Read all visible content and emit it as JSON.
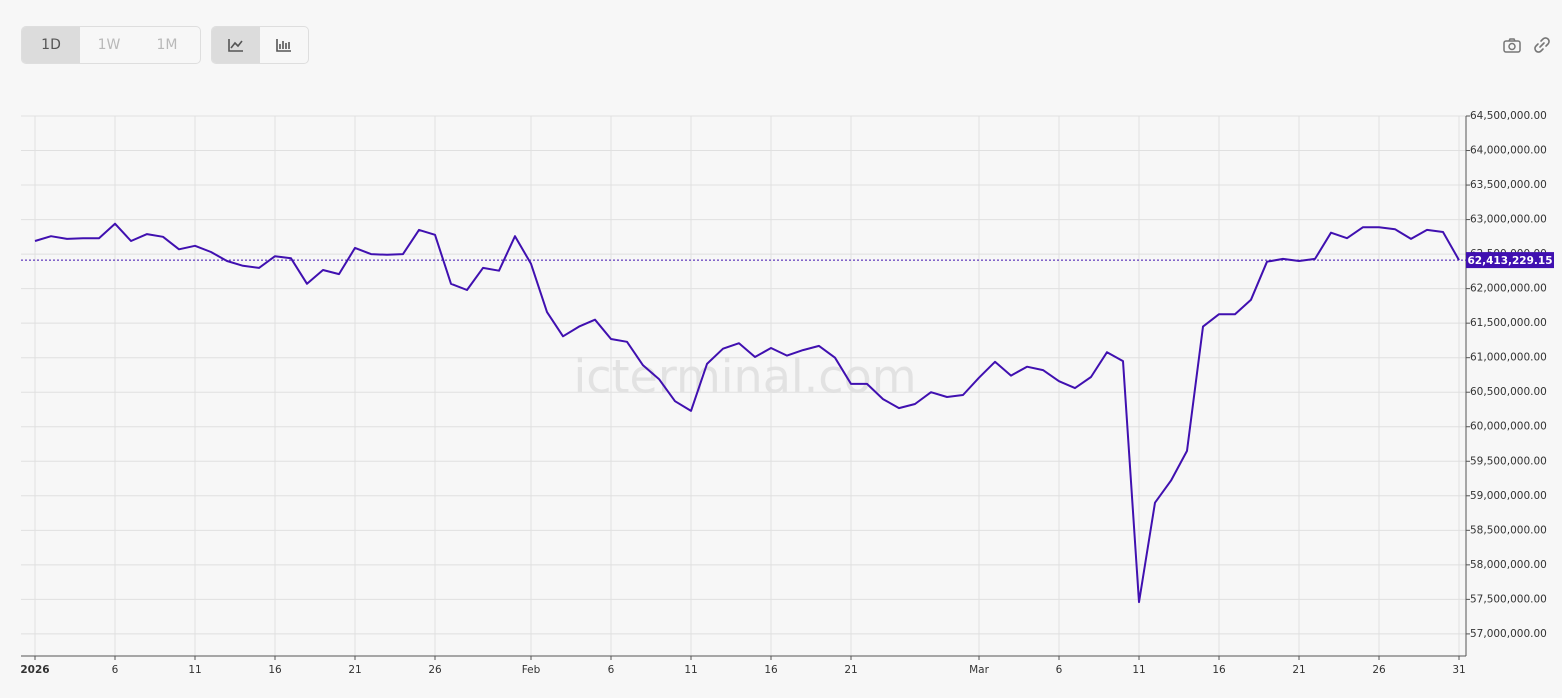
{
  "toolbar": {
    "ranges": [
      "1D",
      "1W",
      "1M"
    ],
    "active_range": "1D"
  },
  "chart_data": {
    "type": "line",
    "watermark": "icterminal.com",
    "x": [
      "2026-01-01",
      "2026-01-02",
      "2026-01-03",
      "2026-01-04",
      "2026-01-05",
      "2026-01-06",
      "2026-01-07",
      "2026-01-08",
      "2026-01-09",
      "2026-01-10",
      "2026-01-11",
      "2026-01-12",
      "2026-01-13",
      "2026-01-14",
      "2026-01-15",
      "2026-01-16",
      "2026-01-17",
      "2026-01-18",
      "2026-01-19",
      "2026-01-20",
      "2026-01-21",
      "2026-01-22",
      "2026-01-23",
      "2026-01-24",
      "2026-01-25",
      "2026-01-26",
      "2026-01-27",
      "2026-01-28",
      "2026-01-29",
      "2026-01-30",
      "2026-01-31",
      "2026-02-01",
      "2026-02-02",
      "2026-02-03",
      "2026-02-04",
      "2026-02-05",
      "2026-02-06",
      "2026-02-07",
      "2026-02-08",
      "2026-02-09",
      "2026-02-10",
      "2026-02-11",
      "2026-02-12",
      "2026-02-13",
      "2026-02-14",
      "2026-02-15",
      "2026-02-16",
      "2026-02-17",
      "2026-02-18",
      "2026-02-19",
      "2026-02-20",
      "2026-02-21",
      "2026-02-22",
      "2026-02-23",
      "2026-02-24",
      "2026-02-25",
      "2026-02-26",
      "2026-02-27",
      "2026-02-28",
      "2026-03-01",
      "2026-03-02",
      "2026-03-03",
      "2026-03-04",
      "2026-03-05",
      "2026-03-06",
      "2026-03-07",
      "2026-03-08",
      "2026-03-09",
      "2026-03-10",
      "2026-03-11",
      "2026-03-12",
      "2026-03-13",
      "2026-03-14",
      "2026-03-15",
      "2026-03-16",
      "2026-03-17",
      "2026-03-18",
      "2026-03-19",
      "2026-03-20",
      "2026-03-21",
      "2026-03-22",
      "2026-03-23",
      "2026-03-24",
      "2026-03-25",
      "2026-03-26",
      "2026-03-27",
      "2026-03-28",
      "2026-03-29",
      "2026-03-30",
      "2026-03-31"
    ],
    "series": [
      {
        "name": "value",
        "color": "#4010b0",
        "values": [
          62690000,
          62760000,
          62720000,
          62730000,
          62730000,
          62940000,
          62690000,
          62790000,
          62750000,
          62570000,
          62620000,
          62530000,
          62400000,
          62330000,
          62300000,
          62470000,
          62440000,
          62070000,
          62270000,
          62210000,
          62590000,
          62500000,
          62490000,
          62500000,
          62850000,
          62780000,
          62070000,
          61980000,
          62300000,
          62260000,
          62760000,
          62360000,
          61660000,
          61310000,
          61450000,
          61550000,
          61270000,
          61230000,
          60890000,
          60690000,
          60370000,
          60230000,
          60910000,
          61130000,
          61210000,
          61010000,
          61140000,
          61030000,
          61110000,
          61170000,
          61000000,
          60620000,
          60620000,
          60400000,
          60270000,
          60330000,
          60500000,
          60430000,
          60460000,
          60710000,
          60940000,
          60740000,
          60870000,
          60820000,
          60660000,
          60560000,
          60720000,
          61080000,
          60950000,
          57460000,
          58900000,
          59220000,
          59650000,
          61450000,
          61630000,
          61630000,
          61840000,
          62390000,
          62430000,
          62400000,
          62430000,
          62810000,
          62730000,
          62890000,
          62890000,
          62860000,
          62720000,
          62850000,
          62820000,
          62413229.15
        ]
      }
    ],
    "current_value": 62413229.15,
    "current_value_label": "62,413,229.15",
    "xlim": [
      "2026-01-01",
      "2026-03-31"
    ],
    "xticks": [
      {
        "value": "2026-01-01",
        "label": "2026"
      },
      {
        "value": "2026-01-06",
        "label": "6"
      },
      {
        "value": "2026-01-11",
        "label": "11"
      },
      {
        "value": "2026-01-16",
        "label": "16"
      },
      {
        "value": "2026-01-21",
        "label": "21"
      },
      {
        "value": "2026-01-26",
        "label": "26"
      },
      {
        "value": "2026-02-01",
        "label": "Feb"
      },
      {
        "value": "2026-02-06",
        "label": "6"
      },
      {
        "value": "2026-02-11",
        "label": "11"
      },
      {
        "value": "2026-02-16",
        "label": "16"
      },
      {
        "value": "2026-02-21",
        "label": "21"
      },
      {
        "value": "2026-03-01",
        "label": "Mar"
      },
      {
        "value": "2026-03-06",
        "label": "6"
      },
      {
        "value": "2026-03-11",
        "label": "11"
      },
      {
        "value": "2026-03-16",
        "label": "16"
      },
      {
        "value": "2026-03-21",
        "label": "21"
      },
      {
        "value": "2026-03-26",
        "label": "26"
      },
      {
        "value": "2026-03-31",
        "label": "31"
      }
    ],
    "ylim": [
      56680000,
      64500000
    ],
    "yticks": [
      {
        "value": 57000000,
        "label": "57,000,000.00"
      },
      {
        "value": 57500000,
        "label": "57,500,000.00"
      },
      {
        "value": 58000000,
        "label": "58,000,000.00"
      },
      {
        "value": 58500000,
        "label": "58,500,000.00"
      },
      {
        "value": 59000000,
        "label": "59,000,000.00"
      },
      {
        "value": 59500000,
        "label": "59,500,000.00"
      },
      {
        "value": 60000000,
        "label": "60,000,000.00"
      },
      {
        "value": 60500000,
        "label": "60,500,000.00"
      },
      {
        "value": 61000000,
        "label": "61,000,000.00"
      },
      {
        "value": 61500000,
        "label": "61,500,000.00"
      },
      {
        "value": 62000000,
        "label": "62,000,000.00"
      },
      {
        "value": 62500000,
        "label": "62,500,000.00"
      },
      {
        "value": 63000000,
        "label": "63,000,000.00"
      },
      {
        "value": 63500000,
        "label": "63,500,000.00"
      },
      {
        "value": 64000000,
        "label": "64,000,000.00"
      },
      {
        "value": 64500000,
        "label": "64,500,000.00"
      }
    ],
    "grid": true
  }
}
